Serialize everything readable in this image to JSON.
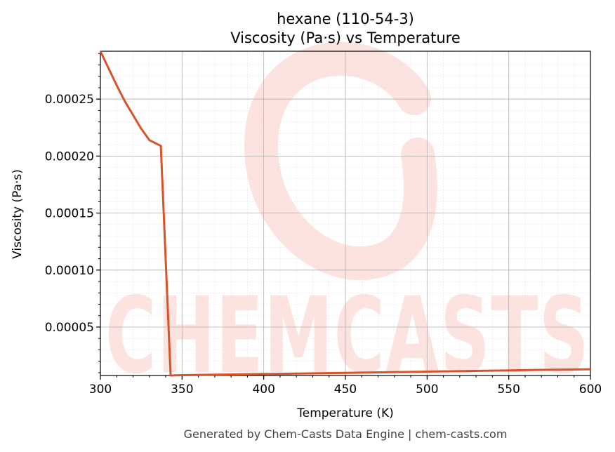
{
  "chart_data": {
    "type": "line",
    "title": "hexane (110-54-3)",
    "subtitle": "Viscosity (Pa·s) vs Temperature",
    "xlabel": "Temperature (K)",
    "ylabel": "Viscosity (Pa·s)",
    "xlim": [
      300,
      600
    ],
    "ylim": [
      7.5e-06,
      0.000292
    ],
    "xticks": [
      300,
      350,
      400,
      450,
      500,
      550,
      600
    ],
    "xtick_labels": [
      "300",
      "350",
      "400",
      "450",
      "500",
      "550",
      "600"
    ],
    "yticks": [
      5e-05,
      0.0001,
      0.00015,
      0.0002,
      0.00025
    ],
    "ytick_labels": [
      "0.00005",
      "0.00010",
      "0.00015",
      "0.00020",
      "0.00025"
    ],
    "grid": true,
    "line_color": "#d9532a",
    "series": [
      {
        "x": [
          300,
          305,
          310,
          315,
          320,
          325,
          330,
          337,
          343,
          350,
          400,
          450,
          500,
          550,
          600
        ],
        "y": [
          0.000292,
          0.000277,
          0.000262,
          0.000248,
          0.000236,
          0.000224,
          0.000214,
          0.000209,
          7.5e-06,
          7.8e-06,
          8.8e-06,
          9.8e-06,
          1.09e-05,
          1.2e-05,
          1.3e-05
        ]
      }
    ]
  },
  "watermark": {
    "text": "CHEMCASTS",
    "color": "#fde3df"
  },
  "footer": "Generated by Chem-Casts Data Engine | chem-casts.com"
}
